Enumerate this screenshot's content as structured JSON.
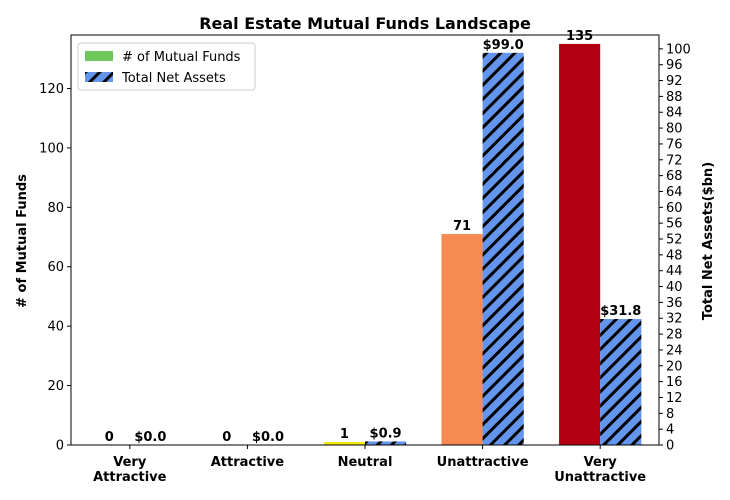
{
  "chart_data": {
    "type": "bar",
    "title": "Real Estate Mutual Funds Landscape",
    "categories": [
      "Very\nAttractive",
      "Attractive",
      "Neutral",
      "Unattractive",
      "Very\nUnattractive"
    ],
    "series": [
      {
        "name": "# of Mutual Funds",
        "axis": "left",
        "values": [
          0,
          0,
          1,
          71,
          135
        ],
        "labels": [
          "0",
          "0",
          "1",
          "71",
          "135"
        ],
        "bar_colors": [
          "#FFFF00",
          "#FFFF00",
          "#F2EA00",
          "#F78A52",
          "#B50013"
        ],
        "legend_color": "#6CC85A"
      },
      {
        "name": "Total Net Assets",
        "axis": "right",
        "values": [
          0.0,
          0.0,
          0.9,
          99.0,
          31.8
        ],
        "labels": [
          "$0.0",
          "$0.0",
          "$0.9",
          "$99.0",
          "$31.8"
        ],
        "color": "#6495ED",
        "hatch": "diagonal"
      }
    ],
    "ylabel": "# of Mutual Funds",
    "ylim": [
      0,
      138
    ],
    "yticks": [
      0,
      20,
      40,
      60,
      80,
      100,
      120
    ],
    "y2label": "Total Net Assets($bn)",
    "y2lim": [
      0,
      103.5
    ],
    "y2ticks": [
      0,
      4,
      8,
      12,
      16,
      20,
      24,
      28,
      32,
      36,
      40,
      44,
      48,
      52,
      56,
      60,
      64,
      68,
      72,
      76,
      80,
      84,
      88,
      92,
      96,
      100
    ],
    "grid": false,
    "legend_position": "top-left"
  }
}
